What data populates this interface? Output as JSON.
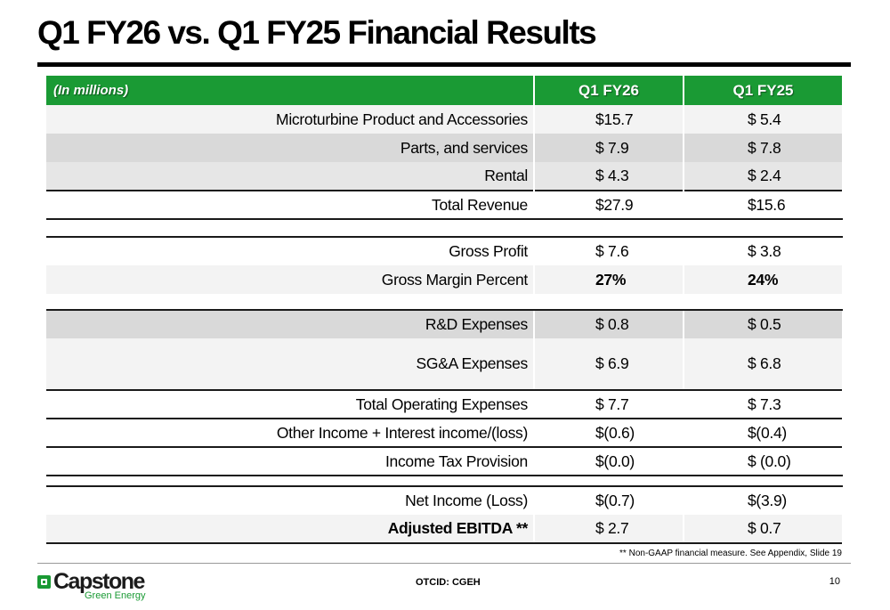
{
  "slide": {
    "title": "Q1 FY26 vs. Q1 FY25 Financial Results",
    "footnote": "** Non-GAAP financial measure. See Appendix, Slide 19",
    "ticker": "OTCID: CGEH",
    "page_number": "10",
    "logo": {
      "name": "Capstone",
      "subtitle": "Green Energy"
    }
  },
  "colors": {
    "header_green": "#1a9a34",
    "row_gray": "#d9d9d9",
    "row_light": "#f3f3f3"
  },
  "table": {
    "header": {
      "label": "(In millions)",
      "col1": "Q1 FY26",
      "col2": "Q1 FY25"
    },
    "rows": [
      {
        "label": "Microturbine Product and Accessories",
        "q1fy26": "$15.7",
        "q1fy25": "$  5.4"
      },
      {
        "label": "Parts, and services",
        "q1fy26": "$  7.9",
        "q1fy25": "$  7.8"
      },
      {
        "label": "Rental",
        "q1fy26": "$  4.3",
        "q1fy25": "$  2.4"
      },
      {
        "label": "Total Revenue",
        "q1fy26": "$27.9",
        "q1fy25": "$15.6"
      },
      {
        "label": "Gross Profit",
        "q1fy26": "$ 7.6",
        "q1fy25": "$ 3.8"
      },
      {
        "label": "Gross Margin Percent",
        "q1fy26": "27%",
        "q1fy25": "24%"
      },
      {
        "label": "R&D Expenses",
        "q1fy26": "$ 0.8",
        "q1fy25": "$ 0.5"
      },
      {
        "label": "SG&A Expenses",
        "q1fy26": "$ 6.9",
        "q1fy25": "$ 6.8"
      },
      {
        "label": "Total Operating Expenses",
        "q1fy26": "$ 7.7",
        "q1fy25": "$ 7.3"
      },
      {
        "label": "Other Income + Interest income/(loss)",
        "q1fy26": "$(0.6)",
        "q1fy25": "$(0.4)"
      },
      {
        "label": "Income Tax Provision",
        "q1fy26": "$(0.0)",
        "q1fy25": "$ (0.0)"
      },
      {
        "label": "Net Income (Loss)",
        "q1fy26": "$(0.7)",
        "q1fy25": "$(3.9)"
      },
      {
        "label": "Adjusted EBITDA **",
        "q1fy26": "$ 2.7",
        "q1fy25": "$ 0.7"
      }
    ]
  }
}
